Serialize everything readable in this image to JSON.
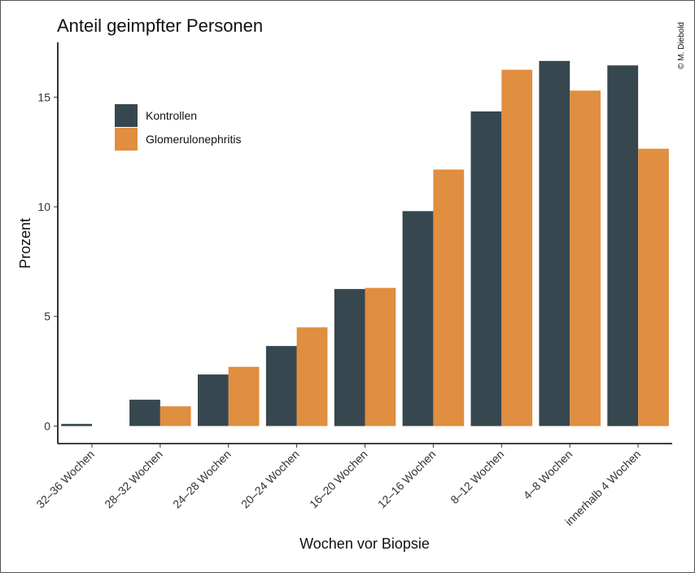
{
  "chart_data": {
    "type": "bar",
    "title": "Anteil geimpfter Personen",
    "xlabel": "Wochen vor Biopsie",
    "ylabel": "Prozent",
    "categories": [
      "32–36 Wochen",
      "28–32 Wochen",
      "24–28 Wochen",
      "20–24 Wochen",
      "16–20 Wochen",
      "12–16 Wochen",
      "8–12 Wochen",
      "4–8 Wochen",
      "innerhalb 4 Wochen"
    ],
    "series": [
      {
        "name": "Kontrollen",
        "color": "#37474f",
        "values": [
          0.1,
          1.2,
          2.35,
          3.65,
          6.25,
          9.8,
          14.35,
          16.65,
          16.45
        ]
      },
      {
        "name": "Glomerulonephritis",
        "color": "#e08e3f",
        "values": [
          0.0,
          0.9,
          2.7,
          4.5,
          6.3,
          11.7,
          16.25,
          15.3,
          12.65
        ]
      }
    ],
    "ylim": [
      -0.8,
      17.5
    ],
    "yticks": [
      0,
      5,
      10,
      15
    ],
    "grid": false,
    "legend_position": "top-left"
  },
  "credit": "© M. Diebold"
}
